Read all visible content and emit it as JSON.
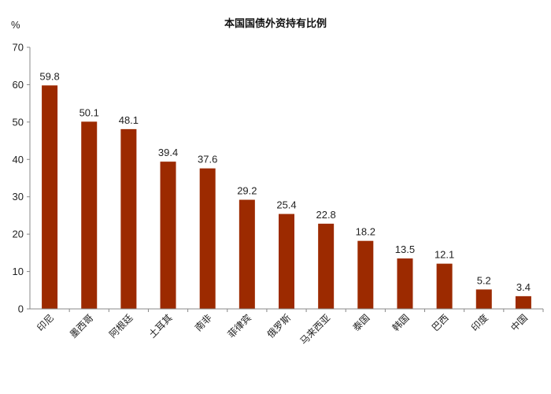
{
  "chart_data": {
    "type": "bar",
    "title": "本国国债外资持有比例",
    "ylabel": "%",
    "xlabel": "",
    "ylim": [
      0,
      70
    ],
    "yticks": [
      0,
      10,
      20,
      30,
      40,
      50,
      60,
      70
    ],
    "grid": false,
    "legend": "none",
    "bar_color": "#9C2A00",
    "categories": [
      "印尼",
      "墨西哥",
      "阿根廷",
      "土耳其",
      "南非",
      "菲律宾",
      "俄罗斯",
      "马来西亚",
      "泰国",
      "韩国",
      "巴西",
      "印度",
      "中国"
    ],
    "values": [
      59.8,
      50.1,
      48.1,
      39.4,
      37.6,
      29.2,
      25.4,
      22.8,
      18.2,
      13.5,
      12.1,
      5.2,
      3.4
    ],
    "value_labels": [
      "59.8",
      "50.1",
      "48.1",
      "39.4",
      "37.6",
      "29.2",
      "25.4",
      "22.8",
      "18.2",
      "13.5",
      "12.1",
      "5.2",
      "3.4"
    ]
  }
}
